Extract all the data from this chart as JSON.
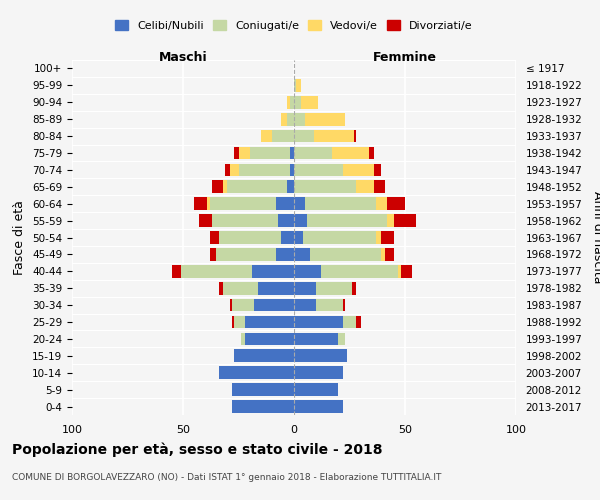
{
  "age_groups": [
    "0-4",
    "5-9",
    "10-14",
    "15-19",
    "20-24",
    "25-29",
    "30-34",
    "35-39",
    "40-44",
    "45-49",
    "50-54",
    "55-59",
    "60-64",
    "65-69",
    "70-74",
    "75-79",
    "80-84",
    "85-89",
    "90-94",
    "95-99",
    "100+"
  ],
  "birth_years": [
    "2013-2017",
    "2008-2012",
    "2003-2007",
    "1998-2002",
    "1993-1997",
    "1988-1992",
    "1983-1987",
    "1978-1982",
    "1973-1977",
    "1968-1972",
    "1963-1967",
    "1958-1962",
    "1953-1957",
    "1948-1952",
    "1943-1947",
    "1938-1942",
    "1933-1937",
    "1928-1932",
    "1923-1927",
    "1918-1922",
    "≤ 1917"
  ],
  "male_celibi": [
    28,
    28,
    34,
    27,
    22,
    22,
    18,
    16,
    19,
    8,
    6,
    7,
    8,
    3,
    2,
    2,
    0,
    0,
    0,
    0,
    0
  ],
  "male_coniugati": [
    0,
    0,
    0,
    0,
    2,
    5,
    10,
    16,
    32,
    27,
    28,
    30,
    30,
    27,
    23,
    18,
    10,
    3,
    2,
    0,
    0
  ],
  "male_vedovi": [
    0,
    0,
    0,
    0,
    0,
    0,
    0,
    0,
    0,
    0,
    0,
    0,
    1,
    2,
    4,
    5,
    5,
    3,
    1,
    0,
    0
  ],
  "male_divorziati": [
    0,
    0,
    0,
    0,
    0,
    1,
    1,
    2,
    4,
    3,
    4,
    6,
    6,
    5,
    2,
    2,
    0,
    0,
    0,
    0,
    0
  ],
  "female_celibi": [
    22,
    20,
    22,
    24,
    20,
    22,
    10,
    10,
    12,
    7,
    4,
    6,
    5,
    0,
    0,
    0,
    0,
    0,
    0,
    0,
    0
  ],
  "female_coniugati": [
    0,
    0,
    0,
    0,
    3,
    6,
    12,
    16,
    35,
    32,
    33,
    36,
    32,
    28,
    22,
    17,
    9,
    5,
    3,
    1,
    0
  ],
  "female_vedovi": [
    0,
    0,
    0,
    0,
    0,
    0,
    0,
    0,
    1,
    2,
    2,
    3,
    5,
    8,
    14,
    17,
    18,
    18,
    8,
    2,
    0
  ],
  "female_divorziati": [
    0,
    0,
    0,
    0,
    0,
    2,
    1,
    2,
    5,
    4,
    6,
    10,
    8,
    5,
    3,
    2,
    1,
    0,
    0,
    0,
    0
  ],
  "color_celibi": "#4472C4",
  "color_coniugati": "#c5d8a4",
  "color_vedovi": "#ffd966",
  "color_divorziati": "#cc0000",
  "bg_color": "#f5f5f5",
  "title": "Popolazione per età, sesso e stato civile - 2018",
  "subtitle": "COMUNE DI BORGOLAVEZZARO (NO) - Dati ISTAT 1° gennaio 2018 - Elaborazione TUTTITALIA.IT",
  "ylabel": "Fasce di età",
  "ylabel_right": "Anni di nascita",
  "xlim": 100
}
